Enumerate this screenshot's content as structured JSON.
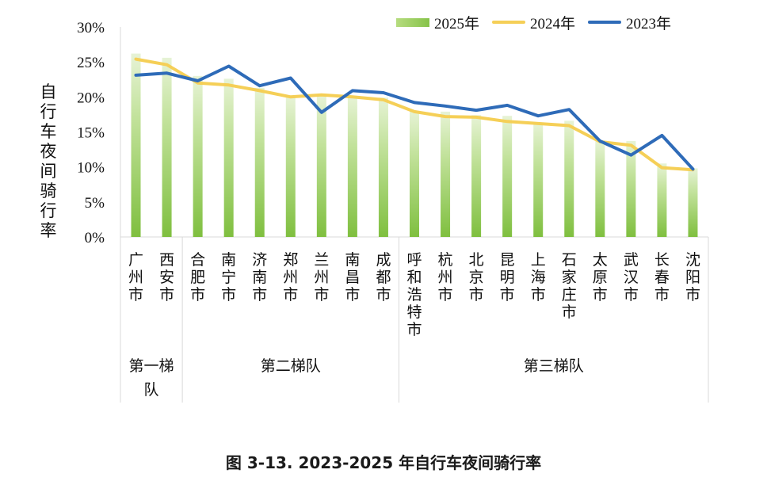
{
  "chart_data": {
    "type": "bar",
    "ylabel": "自行车夜间骑行率",
    "ylim": [
      0,
      30
    ],
    "yticks": [
      "0%",
      "5%",
      "10%",
      "15%",
      "20%",
      "25%",
      "30%"
    ],
    "grid": false,
    "legend_position": "top-right",
    "categories": [
      "广州市",
      "西安市",
      "合肥市",
      "南宁市",
      "济南市",
      "郑州市",
      "兰州市",
      "南昌市",
      "成都市",
      "呼和浩特市",
      "杭州市",
      "北京市",
      "昆明市",
      "上海市",
      "石家庄市",
      "太原市",
      "武汉市",
      "长春市",
      "沈阳市"
    ],
    "groups": [
      {
        "label": "第一梯队",
        "count": 2
      },
      {
        "label": "第二梯队",
        "count": 7
      },
      {
        "label": "第三梯队",
        "count": 10
      }
    ],
    "series": [
      {
        "name": "2025年",
        "kind": "bar",
        "color": "#8cc751",
        "values": [
          26.2,
          25.6,
          23.0,
          22.6,
          21.3,
          20.0,
          20.2,
          20.1,
          19.9,
          18.0,
          17.9,
          17.4,
          17.3,
          16.3,
          16.6,
          13.7,
          13.7,
          10.5,
          9.8
        ]
      },
      {
        "name": "2024年",
        "kind": "line",
        "color": "#f5cf57",
        "values": [
          25.4,
          24.6,
          22.0,
          21.7,
          20.9,
          20.0,
          20.3,
          20.0,
          19.6,
          17.9,
          17.2,
          17.1,
          16.5,
          16.2,
          15.9,
          13.6,
          13.1,
          9.9,
          9.6
        ]
      },
      {
        "name": "2023年",
        "kind": "line",
        "color": "#2e6bb8",
        "values": [
          23.1,
          23.4,
          22.3,
          24.4,
          21.6,
          22.7,
          17.8,
          20.9,
          20.6,
          19.2,
          18.7,
          18.1,
          18.8,
          17.3,
          18.2,
          13.7,
          11.7,
          14.5,
          9.7
        ]
      }
    ]
  },
  "caption": "图 3-13. 2023-2025 年自行车夜间骑行率"
}
